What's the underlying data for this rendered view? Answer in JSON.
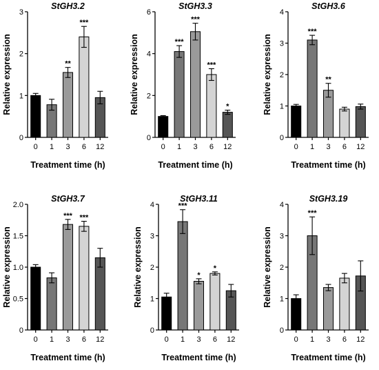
{
  "chart_data": [
    {
      "type": "bar",
      "title": "StGH3.2",
      "xlabel": "Treatment time (h)",
      "ylabel": "Relative expression",
      "categories": [
        "0",
        "1",
        "3",
        "6",
        "12"
      ],
      "values": [
        1.0,
        0.78,
        1.55,
        2.4,
        0.95
      ],
      "errors": [
        0.05,
        0.13,
        0.12,
        0.25,
        0.15
      ],
      "significance": [
        "",
        "",
        "**",
        "***",
        ""
      ],
      "ylim": [
        0,
        3
      ],
      "yticks": [
        "0",
        "1",
        "2",
        "3"
      ],
      "colors": [
        "#000000",
        "#777777",
        "#9a9a9a",
        "#d4d4d4",
        "#555555"
      ]
    },
    {
      "type": "bar",
      "title": "StGH3.3",
      "xlabel": "Treatment time (h)",
      "ylabel": "Relative expression",
      "categories": [
        "0",
        "1",
        "3",
        "6",
        "12"
      ],
      "values": [
        1.0,
        4.1,
        5.05,
        3.0,
        1.2
      ],
      "errors": [
        0.04,
        0.28,
        0.4,
        0.28,
        0.1
      ],
      "significance": [
        "",
        "***",
        "***",
        "***",
        "*"
      ],
      "ylim": [
        0,
        6
      ],
      "yticks": [
        "0",
        "2",
        "4",
        "6"
      ],
      "colors": [
        "#000000",
        "#777777",
        "#9a9a9a",
        "#d4d4d4",
        "#555555"
      ]
    },
    {
      "type": "bar",
      "title": "StGH3.6",
      "xlabel": "Treatment time (h)",
      "ylabel": "Relative expression",
      "categories": [
        "0",
        "1",
        "3",
        "6",
        "12"
      ],
      "values": [
        1.0,
        3.1,
        1.5,
        0.9,
        0.98
      ],
      "errors": [
        0.05,
        0.15,
        0.22,
        0.06,
        0.08
      ],
      "significance": [
        "",
        "***",
        "**",
        "",
        ""
      ],
      "ylim": [
        0,
        4
      ],
      "yticks": [
        "0",
        "1",
        "2",
        "3",
        "4"
      ],
      "colors": [
        "#000000",
        "#777777",
        "#9a9a9a",
        "#d4d4d4",
        "#555555"
      ]
    },
    {
      "type": "bar",
      "title": "StGH3.7",
      "xlabel": "Treatment time (h)",
      "ylabel": "Relative expression",
      "categories": [
        "0",
        "1",
        "3",
        "6",
        "12"
      ],
      "values": [
        1.0,
        0.83,
        1.68,
        1.65,
        1.15
      ],
      "errors": [
        0.04,
        0.08,
        0.08,
        0.08,
        0.15
      ],
      "significance": [
        "",
        "",
        "***",
        "***",
        ""
      ],
      "ylim": [
        0,
        2.0
      ],
      "yticks": [
        "0",
        "0.5",
        "1.0",
        "1.5",
        "2.0"
      ],
      "colors": [
        "#000000",
        "#777777",
        "#9a9a9a",
        "#d4d4d4",
        "#555555"
      ]
    },
    {
      "type": "bar",
      "title": "StGH3.11",
      "xlabel": "Treatment time (h)",
      "ylabel": "Relative expression",
      "categories": [
        "0",
        "1",
        "3",
        "6",
        "12"
      ],
      "values": [
        1.05,
        3.45,
        1.55,
        1.8,
        1.25
      ],
      "errors": [
        0.12,
        0.38,
        0.08,
        0.05,
        0.2
      ],
      "significance": [
        "",
        "***",
        "*",
        "*",
        ""
      ],
      "ylim": [
        0,
        4
      ],
      "yticks": [
        "0",
        "1",
        "2",
        "3",
        "4"
      ],
      "colors": [
        "#000000",
        "#777777",
        "#9a9a9a",
        "#d4d4d4",
        "#555555"
      ]
    },
    {
      "type": "bar",
      "title": "StGH3.19",
      "xlabel": "Treatment time (h)",
      "ylabel": "Relative expression",
      "categories": [
        "0",
        "1",
        "3",
        "6",
        "12"
      ],
      "values": [
        1.0,
        3.0,
        1.35,
        1.65,
        1.72
      ],
      "errors": [
        0.12,
        0.6,
        0.1,
        0.15,
        0.48
      ],
      "significance": [
        "",
        "***",
        "",
        "",
        ""
      ],
      "ylim": [
        0,
        4
      ],
      "yticks": [
        "0",
        "1",
        "2",
        "3",
        "4"
      ],
      "colors": [
        "#000000",
        "#777777",
        "#9a9a9a",
        "#d4d4d4",
        "#555555"
      ]
    }
  ]
}
